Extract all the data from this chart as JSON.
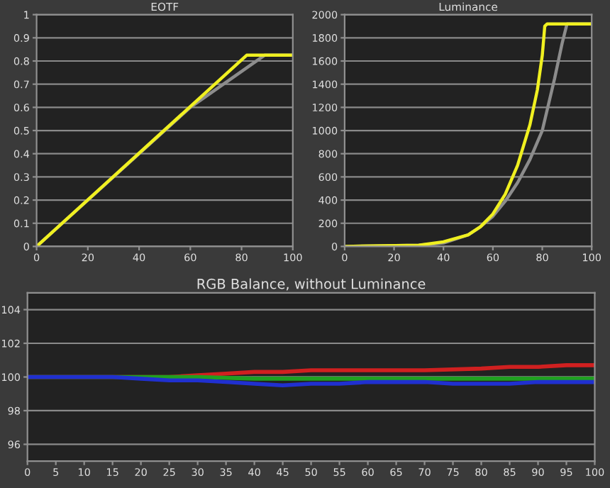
{
  "chart_data": [
    {
      "type": "line",
      "title": "EOTF",
      "xlim": [
        0,
        100
      ],
      "xticks": [
        0,
        20,
        40,
        60,
        80,
        100
      ],
      "ylim": [
        0,
        1
      ],
      "yticks": [
        0,
        0.1,
        0.2,
        0.3,
        0.4,
        0.5,
        0.6,
        0.7,
        0.8,
        0.9,
        1
      ],
      "grid": "y",
      "series": [
        {
          "color": "#8c8c8c",
          "x": [
            0,
            60,
            89,
            100
          ],
          "values": [
            0,
            0.6,
            0.825,
            0.825
          ]
        },
        {
          "color": "#f0f020",
          "x": [
            0,
            82,
            100
          ],
          "values": [
            0,
            0.825,
            0.825
          ]
        }
      ]
    },
    {
      "type": "line",
      "title": "Luminance",
      "xlim": [
        0,
        100
      ],
      "xticks": [
        0,
        20,
        40,
        60,
        80,
        100
      ],
      "ylim": [
        0,
        2000
      ],
      "yticks": [
        0,
        200,
        400,
        600,
        800,
        1000,
        1200,
        1400,
        1600,
        1800,
        2000
      ],
      "grid": "y",
      "series": [
        {
          "color": "#8c8c8c",
          "x": [
            0,
            30,
            40,
            50,
            55,
            60,
            65,
            70,
            75,
            80,
            85,
            88,
            90,
            100
          ],
          "values": [
            0,
            10,
            30,
            100,
            170,
            260,
            390,
            550,
            750,
            1000,
            1450,
            1750,
            1920,
            1920
          ]
        },
        {
          "color": "#f0f020",
          "x": [
            0,
            30,
            40,
            50,
            55,
            60,
            65,
            70,
            75,
            78,
            80,
            81,
            82,
            100
          ],
          "values": [
            0,
            10,
            40,
            100,
            170,
            280,
            450,
            700,
            1050,
            1350,
            1650,
            1900,
            1920,
            1920
          ]
        }
      ]
    },
    {
      "type": "line",
      "title": "RGB Balance, without Luminance",
      "xlim": [
        0,
        100
      ],
      "xticks": [
        0,
        5,
        10,
        15,
        20,
        25,
        30,
        35,
        40,
        45,
        50,
        55,
        60,
        65,
        70,
        75,
        80,
        85,
        90,
        95,
        100
      ],
      "ylim": [
        95,
        105
      ],
      "yticks": [
        96,
        98,
        100,
        102,
        104
      ],
      "grid": "y",
      "series": [
        {
          "color": "#d02020",
          "x": [
            0,
            20,
            25,
            30,
            35,
            40,
            45,
            50,
            60,
            70,
            80,
            85,
            90,
            95,
            100
          ],
          "values": [
            100,
            100,
            100,
            100.1,
            100.2,
            100.3,
            100.3,
            100.4,
            100.4,
            100.4,
            100.5,
            100.6,
            100.6,
            100.7,
            100.7
          ]
        },
        {
          "color": "#20a020",
          "x": [
            0,
            20,
            30,
            40,
            50,
            60,
            70,
            80,
            90,
            100
          ],
          "values": [
            100,
            100,
            100,
            99.9,
            99.9,
            99.9,
            99.9,
            99.9,
            99.9,
            99.9
          ]
        },
        {
          "color": "#2030d0",
          "x": [
            0,
            15,
            20,
            25,
            30,
            35,
            40,
            45,
            50,
            55,
            60,
            70,
            75,
            80,
            85,
            90,
            100
          ],
          "values": [
            100,
            100,
            99.9,
            99.8,
            99.8,
            99.7,
            99.6,
            99.5,
            99.6,
            99.6,
            99.7,
            99.7,
            99.6,
            99.6,
            99.6,
            99.7,
            99.7
          ]
        }
      ]
    }
  ]
}
